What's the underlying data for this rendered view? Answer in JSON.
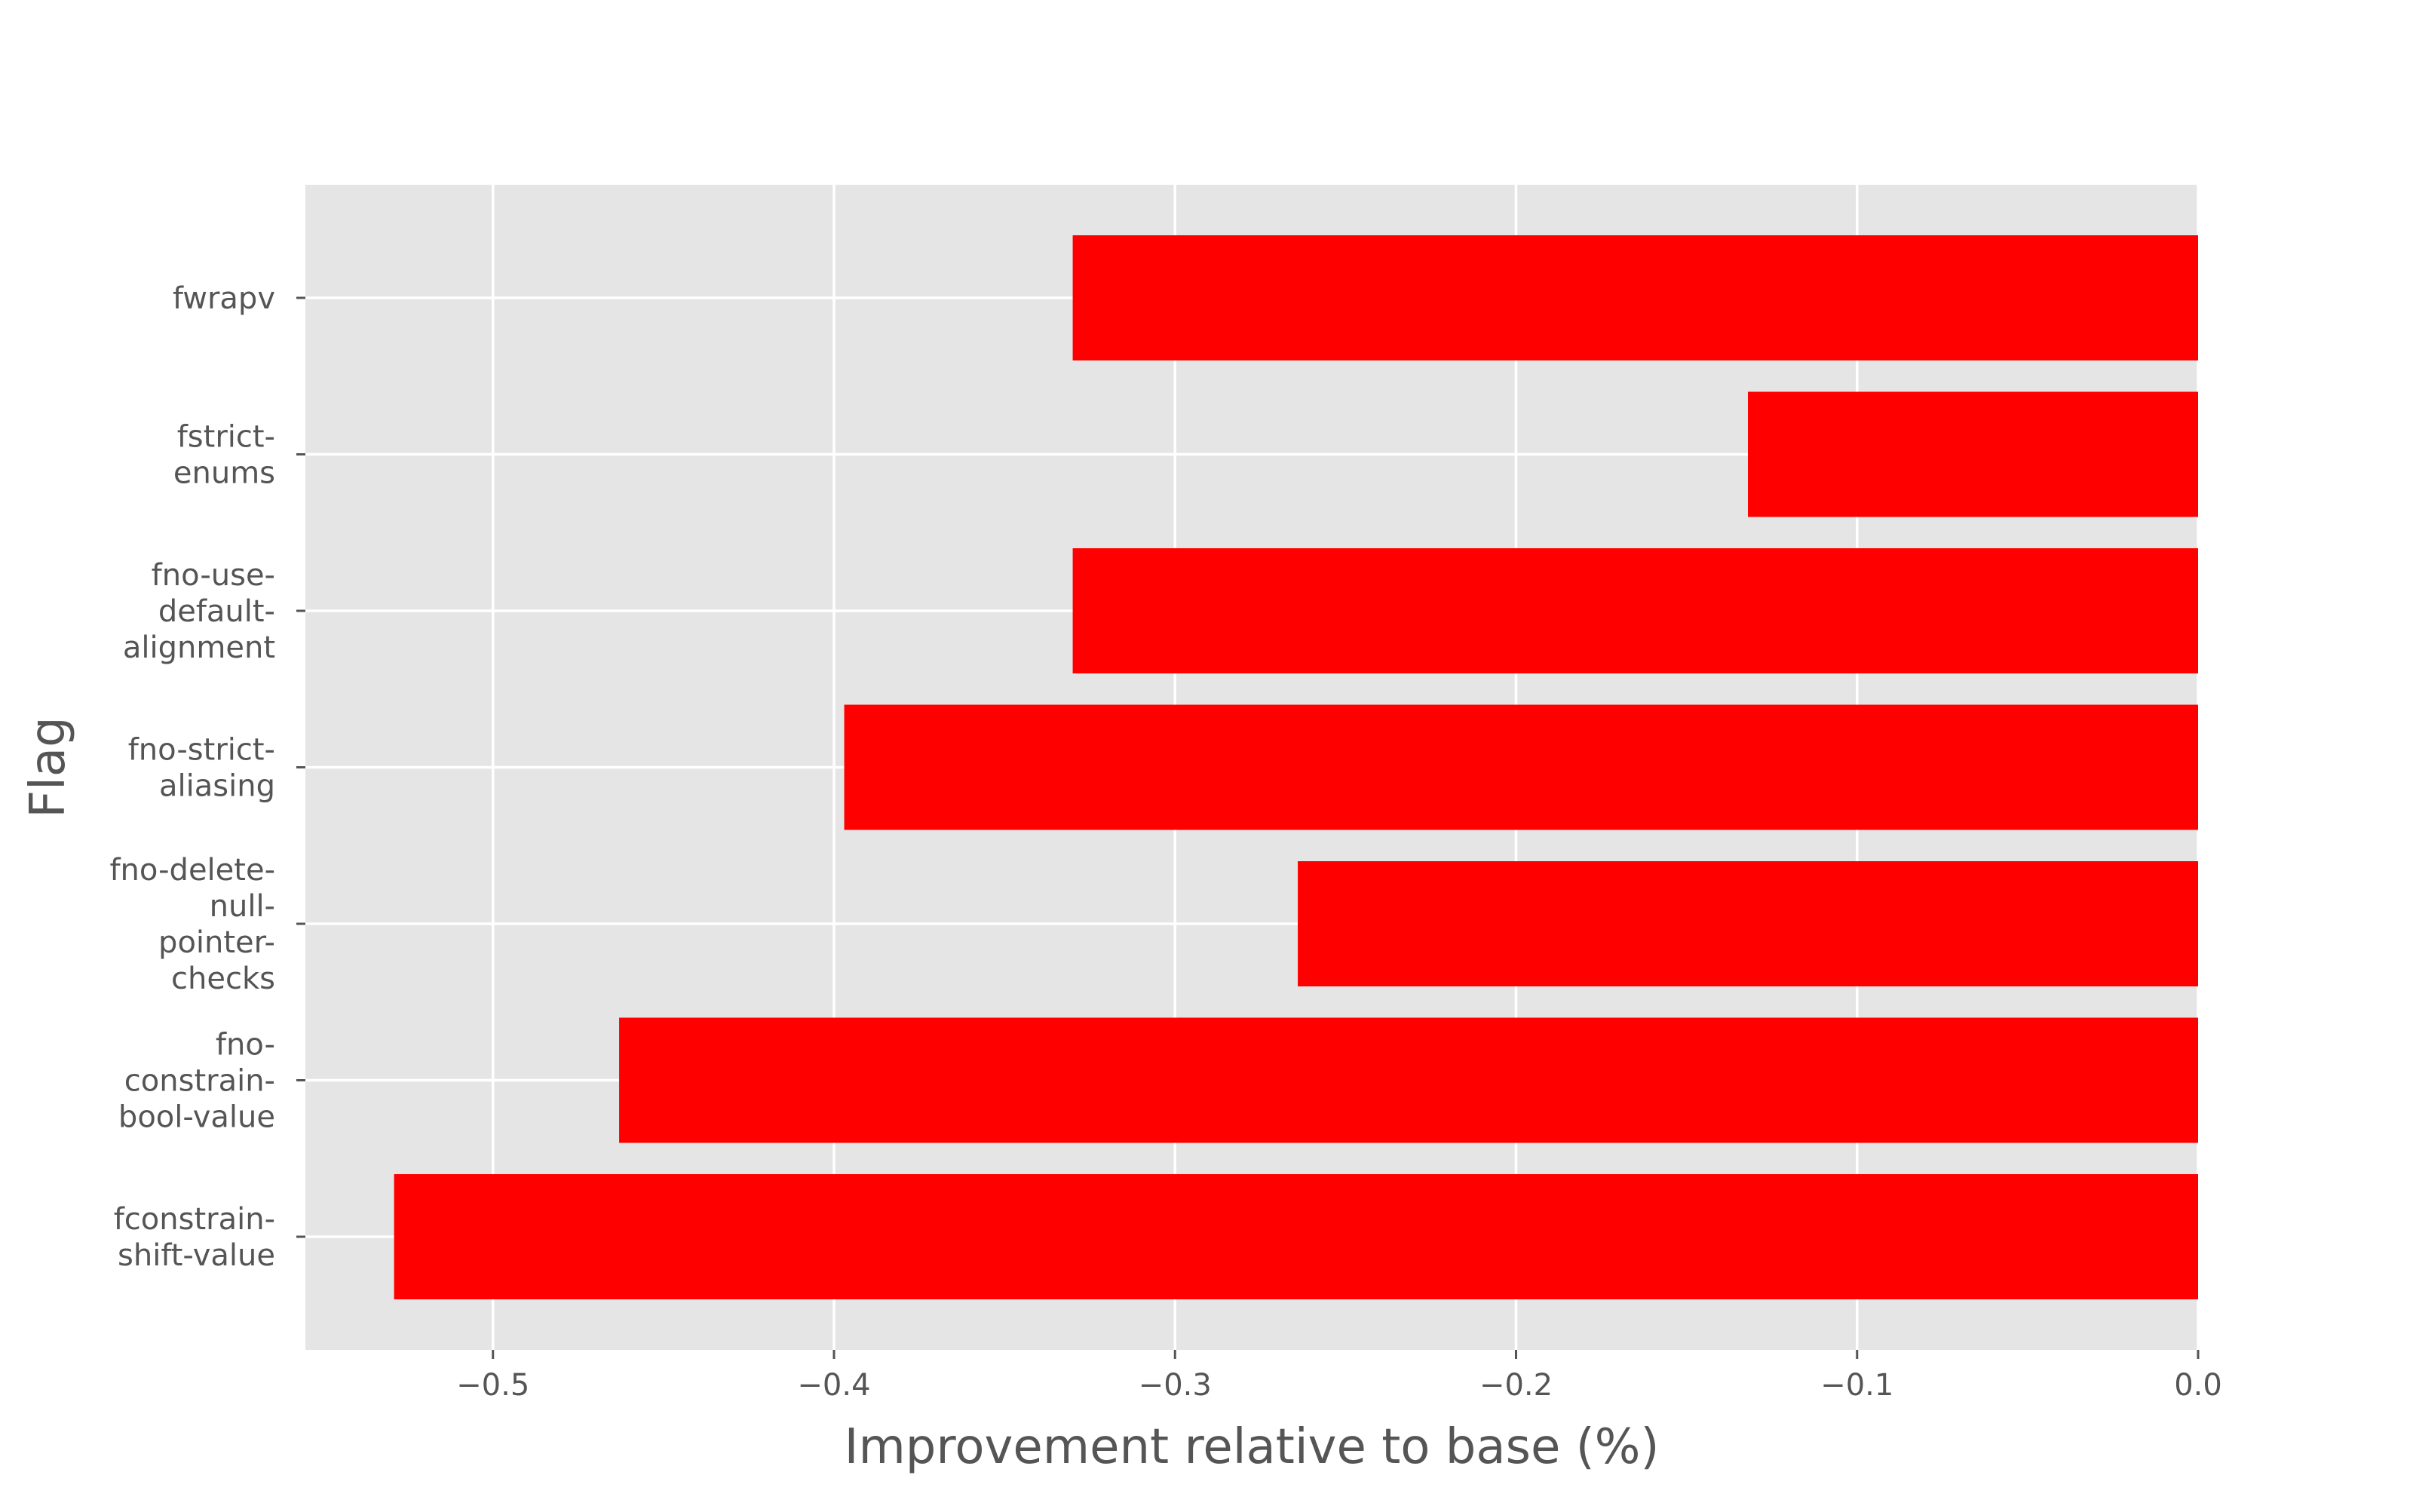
{
  "chart_data": {
    "type": "bar",
    "orientation": "horizontal",
    "xlabel": "Improvement relative to base (%)",
    "ylabel": "Flag",
    "xlim": [
      -0.555,
      0.0
    ],
    "xticks": [
      -0.5,
      -0.4,
      -0.3,
      -0.2,
      -0.1,
      0.0
    ],
    "xtick_labels": [
      "−0.5",
      "−0.4",
      "−0.3",
      "−0.2",
      "−0.1",
      "0.0"
    ],
    "grid": true,
    "background_color": "#e5e5e5",
    "bar_color": "#ff0000",
    "categories": [
      {
        "label": "fwrapv",
        "lines": [
          "fwrapv"
        ]
      },
      {
        "label": "fstrict-enums",
        "lines": [
          "fstrict-",
          "enums"
        ]
      },
      {
        "label": "fno-use-default-alignment",
        "lines": [
          "fno-use-",
          "default-",
          "alignment"
        ]
      },
      {
        "label": "fno-strict-aliasing",
        "lines": [
          "fno-strict-",
          "aliasing"
        ]
      },
      {
        "label": "fno-delete-null-pointer-checks",
        "lines": [
          "fno-delete-",
          "null-",
          "pointer-",
          "checks"
        ]
      },
      {
        "label": "fno-constrain-bool-value",
        "lines": [
          "fno-",
          "constrain-",
          "bool-value"
        ]
      },
      {
        "label": "fconstrain-shift-value",
        "lines": [
          "fconstrain-",
          "shift-value"
        ]
      }
    ],
    "values": [
      -0.33,
      -0.132,
      -0.33,
      -0.397,
      -0.264,
      -0.463,
      -0.529
    ]
  }
}
